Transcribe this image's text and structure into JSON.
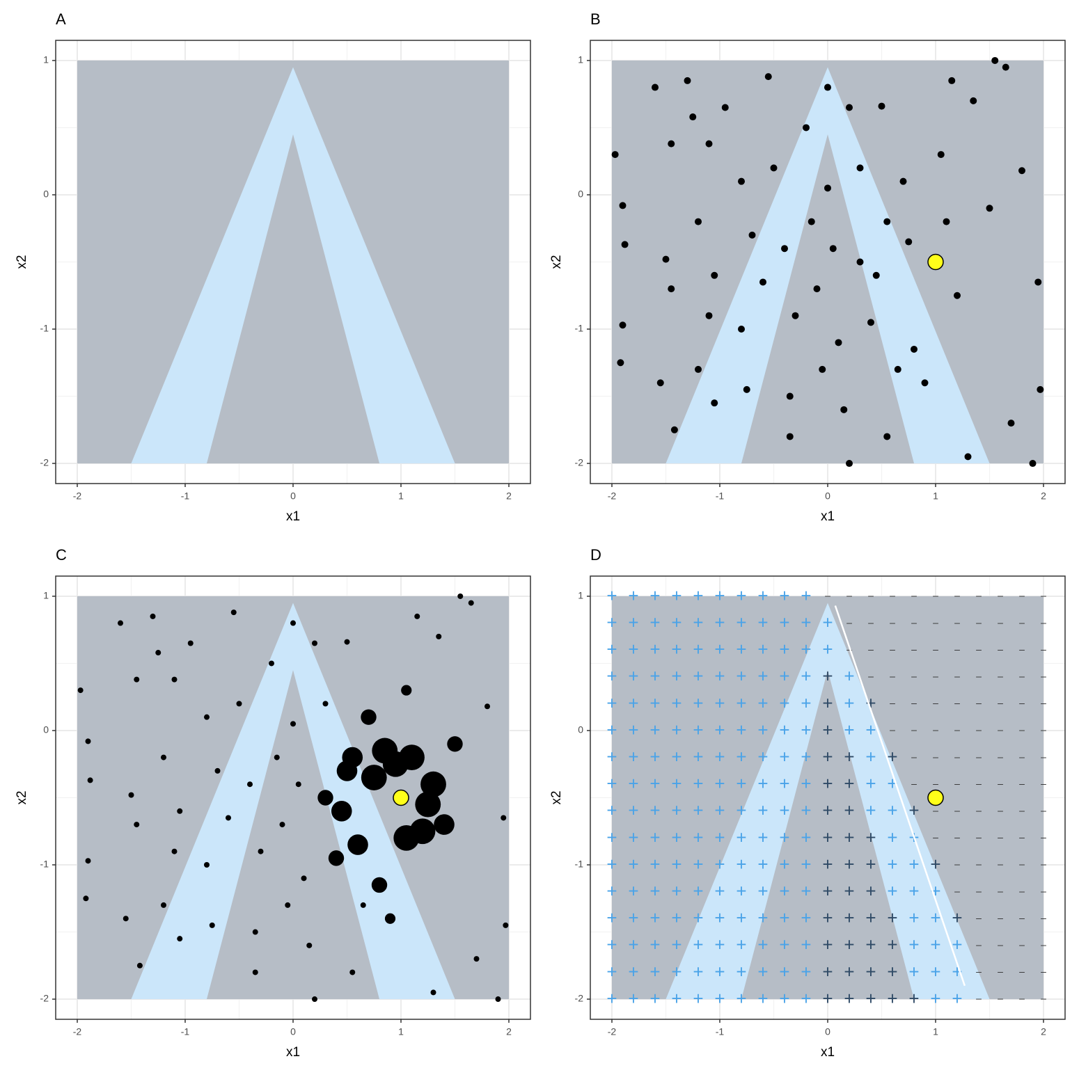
{
  "chart_data": [
    {
      "type": "region",
      "title": "A",
      "x_label": "x1",
      "y_label": "x2",
      "xlim": [
        -2.2,
        2.2
      ],
      "ylim": [
        -2.15,
        1.15
      ],
      "xticks": [
        -2,
        -1,
        0,
        1,
        2
      ],
      "yticks": [
        -2,
        -1,
        0,
        1
      ],
      "grid": true,
      "region_xlim": [
        -2,
        2
      ],
      "region_ylim": [
        -2,
        1
      ],
      "region_color": "#b6bdc6",
      "band": {
        "color": "#cbe6fa",
        "outer_x": [
          0,
          -1.5,
          1.5
        ],
        "outer_y": [
          0.95,
          -2,
          -2
        ],
        "inner_x": [
          0,
          -0.8,
          0.8
        ],
        "inner_y": [
          0.45,
          -2,
          -2
        ]
      }
    },
    {
      "type": "scatter",
      "title": "B",
      "x_label": "x1",
      "y_label": "x2",
      "xlim": [
        -2.2,
        2.2
      ],
      "ylim": [
        -2.15,
        1.15
      ],
      "xticks": [
        -2,
        -1,
        0,
        1,
        2
      ],
      "yticks": [
        -2,
        -1,
        0,
        1
      ],
      "grid": true,
      "region_xlim": [
        -2,
        2
      ],
      "region_ylim": [
        -2,
        1
      ],
      "region_color": "#b6bdc6",
      "band": {
        "color": "#cbe6fa",
        "outer_x": [
          0,
          -1.5,
          1.5
        ],
        "outer_y": [
          0.95,
          -2,
          -2
        ],
        "inner_x": [
          0,
          -0.8,
          0.8
        ],
        "inner_y": [
          0.45,
          -2,
          -2
        ]
      },
      "point_color": "#000000",
      "x": [
        -1.97,
        -1.9,
        -1.88,
        -1.9,
        -1.92,
        -1.6,
        -1.45,
        -1.5,
        -1.45,
        -1.42,
        -1.3,
        -1.25,
        -1.1,
        -1.2,
        -1.05,
        -1.1,
        -1.2,
        -1.05,
        -0.95,
        -0.8,
        -0.7,
        -0.8,
        -0.75,
        -0.55,
        -0.5,
        -0.4,
        -0.3,
        -0.35,
        -0.35,
        -0.2,
        -0.15,
        -0.1,
        0,
        0,
        0.05,
        0.1,
        0.15,
        0.2,
        0.3,
        0.3,
        0.4,
        0.5,
        0.55,
        0.55,
        0.7,
        0.75,
        0.8,
        0.9,
        1.05,
        1.1,
        1.2,
        1.3,
        1.35,
        1.5,
        1.55,
        1.65,
        1.7,
        1.8,
        1.95,
        1.97,
        1.9,
        -0.6,
        0.2,
        -0.05,
        0.45,
        1.15,
        -1.55,
        0.65
      ],
      "y": [
        0.3,
        -0.08,
        -0.37,
        -0.97,
        -1.25,
        0.8,
        0.38,
        -0.48,
        -0.7,
        -1.75,
        0.85,
        0.58,
        0.38,
        -0.2,
        -0.6,
        -0.9,
        -1.3,
        -1.55,
        0.65,
        0.1,
        -0.3,
        -1,
        -1.45,
        0.88,
        0.2,
        -0.4,
        -0.9,
        -1.5,
        -1.8,
        0.5,
        -0.2,
        -0.7,
        0.8,
        0.05,
        -0.4,
        -1.1,
        -1.6,
        -2,
        0.2,
        -0.5,
        -0.95,
        0.66,
        -0.2,
        -1.8,
        0.1,
        -0.35,
        -1.15,
        -1.4,
        0.3,
        -0.2,
        -0.75,
        -1.95,
        0.7,
        -0.1,
        1,
        0.95,
        -1.7,
        0.18,
        -0.65,
        -1.45,
        -2,
        -0.65,
        0.65,
        -1.3,
        -0.6,
        0.85,
        -1.4,
        -1.3
      ],
      "highlight": {
        "x": 1,
        "y": -0.5,
        "color": "#ffff1a"
      }
    },
    {
      "type": "bubble",
      "title": "C",
      "x_label": "x1",
      "y_label": "x2",
      "xlim": [
        -2.2,
        2.2
      ],
      "ylim": [
        -2.15,
        1.15
      ],
      "xticks": [
        -2,
        -1,
        0,
        1,
        2
      ],
      "yticks": [
        -2,
        -1,
        0,
        1
      ],
      "grid": true,
      "region_xlim": [
        -2,
        2
      ],
      "region_ylim": [
        -2,
        1
      ],
      "region_color": "#b6bdc6",
      "band": {
        "color": "#cbe6fa",
        "outer_x": [
          0,
          -1.5,
          1.5
        ],
        "outer_y": [
          0.95,
          -2,
          -2
        ],
        "inner_x": [
          0,
          -0.8,
          0.8
        ],
        "inner_y": [
          0.45,
          -2,
          -2
        ]
      },
      "point_color": "#000000",
      "x": [
        -1.97,
        -1.9,
        -1.88,
        -1.9,
        -1.92,
        -1.6,
        -1.45,
        -1.5,
        -1.45,
        -1.42,
        -1.3,
        -1.25,
        -1.1,
        -1.2,
        -1.05,
        -1.1,
        -1.2,
        -1.05,
        -0.95,
        -0.8,
        -0.7,
        -0.8,
        -0.75,
        -0.55,
        -0.5,
        -0.4,
        -0.3,
        -0.35,
        -0.35,
        -0.2,
        -0.15,
        -0.1,
        0,
        0,
        0.05,
        0.1,
        0.15,
        0.2,
        0.3,
        0.3,
        0.4,
        0.5,
        0.55,
        0.55,
        0.7,
        0.75,
        0.8,
        0.9,
        1.05,
        1.1,
        1.2,
        1.3,
        1.35,
        1.5,
        1.55,
        1.65,
        1.7,
        1.8,
        1.95,
        1.97,
        1.9,
        -0.6,
        0.2,
        -0.05,
        0.45,
        1.15,
        -1.55,
        0.65,
        0.85,
        1.3,
        0.6,
        1.05,
        1.25,
        0.5,
        1.4,
        0.95
      ],
      "y": [
        0.3,
        -0.08,
        -0.37,
        -0.97,
        -1.25,
        0.8,
        0.38,
        -0.48,
        -0.7,
        -1.75,
        0.85,
        0.58,
        0.38,
        -0.2,
        -0.6,
        -0.9,
        -1.3,
        -1.55,
        0.65,
        0.1,
        -0.3,
        -1,
        -1.45,
        0.88,
        0.2,
        -0.4,
        -0.9,
        -1.5,
        -1.8,
        0.5,
        -0.2,
        -0.7,
        0.8,
        0.05,
        -0.4,
        -1.1,
        -1.6,
        -2,
        0.2,
        -0.5,
        -0.95,
        0.66,
        -0.2,
        -1.8,
        0.1,
        -0.35,
        -1.15,
        -1.4,
        0.3,
        -0.2,
        -0.75,
        -1.95,
        0.7,
        -0.1,
        1,
        0.95,
        -1.7,
        0.18,
        -0.65,
        -1.45,
        -2,
        -0.65,
        0.65,
        -1.3,
        -0.6,
        0.85,
        -1.4,
        -1.3,
        -0.15,
        -0.4,
        -0.85,
        -0.8,
        -0.55,
        -0.3,
        -0.7,
        -0.25
      ],
      "size": [
        1,
        1,
        1,
        1,
        1,
        1,
        1,
        1,
        1,
        1,
        1,
        1,
        1,
        1,
        1,
        1,
        1,
        1,
        1,
        1,
        1,
        1,
        1,
        1,
        1,
        1,
        1,
        1,
        1,
        1,
        1,
        1,
        1,
        1,
        1,
        1,
        1,
        1,
        1,
        3,
        3,
        1,
        4,
        1,
        3,
        5,
        3,
        2,
        2,
        5,
        5,
        1,
        1,
        3,
        1,
        1,
        1,
        1,
        1,
        1,
        1,
        1,
        1,
        1,
        4,
        1,
        1,
        1,
        5,
        5,
        4,
        5,
        5,
        4,
        4,
        5
      ],
      "highlight": {
        "x": 1,
        "y": -0.5,
        "color": "#ffff1a"
      }
    },
    {
      "type": "grid-classes",
      "title": "D",
      "x_label": "x1",
      "y_label": "x2",
      "xlim": [
        -2.2,
        2.2
      ],
      "ylim": [
        -2.15,
        1.15
      ],
      "xticks": [
        -2,
        -1,
        0,
        1,
        2
      ],
      "yticks": [
        -2,
        -1,
        0,
        1
      ],
      "grid": true,
      "region_xlim": [
        -2,
        2
      ],
      "region_ylim": [
        -2,
        1
      ],
      "region_color": "#b6bdc6",
      "band": {
        "color": "#cbe6fa",
        "outer_x": [
          0,
          -1.5,
          1.5
        ],
        "outer_y": [
          0.95,
          -2,
          -2
        ],
        "inner_x": [
          0,
          -0.8,
          0.8
        ],
        "inner_y": [
          0.45,
          -2,
          -2
        ]
      },
      "marker_labels": [
        "+",
        "–"
      ],
      "grid_x": [
        -2,
        -1.8,
        -1.6,
        -1.4,
        -1.2,
        -1,
        -0.8,
        -0.6,
        -0.4,
        -0.2,
        0,
        0.2,
        0.4,
        0.6,
        0.8,
        1,
        1.2,
        1.4,
        1.6,
        1.8,
        2
      ],
      "grid_y": [
        1,
        0.8,
        0.6,
        0.4,
        0.2,
        0,
        -0.2,
        -0.4,
        -0.6,
        -0.8,
        -1,
        -1.2,
        -1.4,
        -1.6,
        -1.8,
        -2
      ],
      "n_plus": [
        10,
        11,
        11,
        12,
        13,
        13,
        14,
        14,
        15,
        15,
        16,
        16,
        17,
        17,
        17,
        17
      ],
      "plus_color": "#4aa3e8",
      "plus_dark_color": "#2f4a66",
      "minus_color": "#333333",
      "line": {
        "x": [
          0.07,
          1.27
        ],
        "y": [
          0.93,
          -1.9
        ],
        "color": "#ffffff"
      },
      "highlight": {
        "x": 1,
        "y": -0.5,
        "color": "#ffff1a"
      }
    }
  ]
}
